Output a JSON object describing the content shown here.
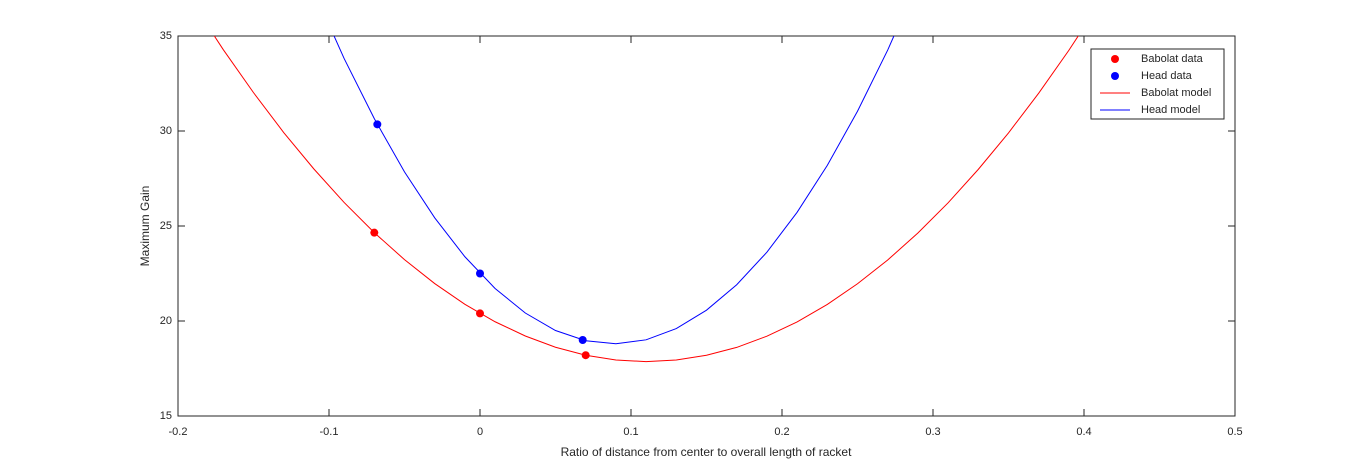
{
  "chart_data": {
    "type": "line",
    "xlabel": "Ratio of distance from center to overall length of racket",
    "ylabel": "Maximum Gain",
    "xlim": [
      -0.2,
      0.5
    ],
    "xticks": [
      -0.2,
      -0.1,
      0,
      0.1,
      0.2,
      0.3,
      0.4,
      0.5
    ],
    "ylim": [
      15,
      35
    ],
    "yticks": [
      15,
      20,
      25,
      30,
      35
    ],
    "legend": "northeast",
    "box": true,
    "series": [
      {
        "name": "Babolat data",
        "color": "#ff0000",
        "mode": "markers",
        "x": [
          -0.07,
          0,
          0.07
        ],
        "values": [
          24.65,
          20.4,
          18.2
        ]
      },
      {
        "name": "Head data",
        "color": "#0000ff",
        "mode": "markers",
        "x": [
          -0.068,
          0,
          0.068
        ],
        "values": [
          30.35,
          22.5,
          19.0
        ]
      },
      {
        "name": "Babolat model",
        "color": "#ff0000",
        "mode": "line",
        "x": [
          -0.19,
          -0.17,
          -0.15,
          -0.13,
          -0.11,
          -0.09,
          -0.07,
          -0.05,
          -0.03,
          -0.01,
          0.01,
          0.03,
          0.05,
          0.07,
          0.09,
          0.11,
          0.13,
          0.15,
          0.17,
          0.19,
          0.21,
          0.23,
          0.25,
          0.27,
          0.29,
          0.31,
          0.33,
          0.35,
          0.37,
          0.39,
          0.41
        ],
        "values": [
          36.71,
          34.28,
          32.02,
          29.92,
          28.0,
          26.24,
          24.65,
          23.23,
          21.97,
          20.88,
          19.96,
          19.21,
          18.62,
          18.2,
          17.95,
          17.86,
          17.95,
          18.2,
          18.61,
          19.2,
          19.95,
          20.87,
          21.96,
          23.21,
          24.63,
          26.22,
          27.98,
          29.9,
          31.99,
          34.25,
          36.68
        ]
      },
      {
        "name": "Head model",
        "color": "#0000ff",
        "mode": "line",
        "x": [
          -0.11,
          -0.09,
          -0.07,
          -0.05,
          -0.03,
          -0.01,
          0.01,
          0.03,
          0.05,
          0.07,
          0.09,
          0.11,
          0.13,
          0.15,
          0.17,
          0.19,
          0.21,
          0.23,
          0.25,
          0.27,
          0.29
        ],
        "values": [
          37.37,
          33.82,
          30.65,
          27.85,
          25.43,
          23.38,
          21.71,
          20.42,
          19.5,
          18.96,
          18.8,
          19.01,
          19.6,
          20.57,
          21.91,
          23.62,
          25.72,
          28.19,
          31.04,
          34.26,
          37.86
        ]
      }
    ]
  }
}
